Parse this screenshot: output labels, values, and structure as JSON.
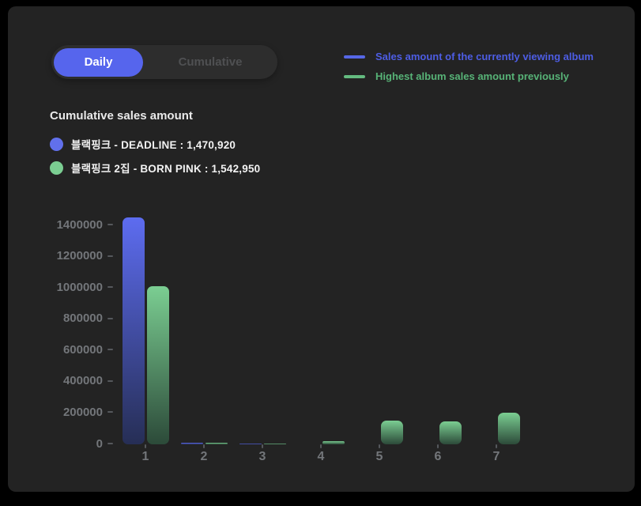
{
  "tabs": {
    "daily": "Daily",
    "cumulative": "Cumulative"
  },
  "top_legend": [
    {
      "label": "Sales amount of the currently viewing album",
      "swatch_color": "#5667e6",
      "text_color": "#4d5de4"
    },
    {
      "label": "Highest album sales amount previously",
      "swatch_color": "#64bb80",
      "text_color": "#57b377"
    }
  ],
  "section": {
    "title": "Cumulative sales amount"
  },
  "album_legend": [
    {
      "label": "블랙핑크 - DEADLINE : 1,470,920",
      "dot_color": "#6170ec"
    },
    {
      "label": "블랙핑크 2집 - BORN PINK : 1,542,950",
      "dot_color": "#7bce92"
    }
  ],
  "colors": {
    "panel_bg": "#232323",
    "accent_blue": "#5665ed",
    "accent_green": "#64bb80"
  },
  "chart_data": {
    "type": "bar",
    "title": "",
    "xlabel": "",
    "ylabel": "",
    "grid": false,
    "legend_position": "top-right",
    "categories": [
      "1",
      "2",
      "3",
      "4",
      "5",
      "6",
      "7"
    ],
    "series": [
      {
        "name": "블랙핑크 - DEADLINE",
        "color_top": "#5d6cf0",
        "color_bottom": "#262e55",
        "values": [
          1450000,
          8000,
          3000,
          0,
          0,
          0,
          0
        ]
      },
      {
        "name": "블랙핑크 2집 - BORN PINK",
        "color_top": "#7bce92",
        "color_bottom": "#2c4a39",
        "values": [
          1010000,
          8000,
          3000,
          20000,
          150000,
          145000,
          200000
        ]
      }
    ],
    "yticks": [
      0,
      200000,
      400000,
      600000,
      800000,
      1000000,
      1200000,
      1400000
    ],
    "ylim": [
      0,
      1480000
    ]
  }
}
